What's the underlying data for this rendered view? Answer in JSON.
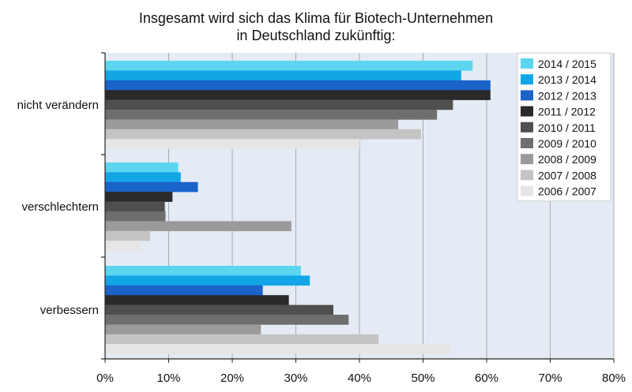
{
  "chart_data": {
    "type": "bar",
    "orientation": "horizontal",
    "title_lines": [
      "Insgesamt wird sich das Klima für Biotech-Unternehmen",
      "in Deutschland zukünftig:"
    ],
    "categories": [
      "nicht verändern",
      "verschlechtern",
      "verbessern"
    ],
    "series": [
      {
        "name": "2014 / 2015",
        "color": "#5cd6ee",
        "values": [
          57.8,
          11.5,
          30.8
        ]
      },
      {
        "name": "2013 / 2014",
        "color": "#12a6e6",
        "values": [
          56.0,
          11.9,
          32.2
        ]
      },
      {
        "name": "2012 / 2013",
        "color": "#1a63c9",
        "values": [
          60.6,
          14.6,
          24.8
        ]
      },
      {
        "name": "2011 / 2012",
        "color": "#2a2a2a",
        "values": [
          60.6,
          10.6,
          28.9
        ]
      },
      {
        "name": "2010 / 2011",
        "color": "#4f4f4f",
        "values": [
          54.7,
          9.4,
          35.9
        ]
      },
      {
        "name": "2009 / 2010",
        "color": "#6e6e6e",
        "values": [
          52.2,
          9.5,
          38.3
        ]
      },
      {
        "name": "2008 / 2009",
        "color": "#9a9a9a",
        "values": [
          46.1,
          29.3,
          24.5
        ]
      },
      {
        "name": "2007 / 2008",
        "color": "#c4c4c4",
        "values": [
          49.7,
          7.1,
          43.0
        ]
      },
      {
        "name": "2006 / 2007",
        "color": "#e6e6e6",
        "values": [
          40.0,
          5.7,
          54.2
        ]
      }
    ],
    "xlim": [
      0,
      80
    ],
    "xticks": [
      "0%",
      "10%",
      "20%",
      "30%",
      "40%",
      "50%",
      "60%",
      "70%",
      "80%"
    ],
    "grid": true,
    "legend_position": "top-right"
  }
}
